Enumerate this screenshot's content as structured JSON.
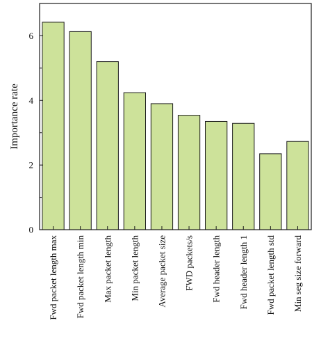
{
  "chart_data": {
    "type": "bar",
    "title": "",
    "xlabel": "",
    "ylabel": "Importance rate",
    "ylim": [
      0,
      7
    ],
    "yticks": [
      0,
      2,
      4,
      6
    ],
    "grid": false,
    "legend": "none",
    "bar_color": "#cde29a",
    "bar_edge_color": "#1a1a1a",
    "categories": [
      "Fwd packet length max",
      "Fwd packet length min",
      "Max packet length",
      "Min packet length",
      "Average packet size",
      "FWD packets/s",
      "Fwd header length",
      "Fwd header length 1",
      "Fwd packet length std",
      "Min seg size forward"
    ],
    "values": [
      6.42,
      6.13,
      5.2,
      4.24,
      3.9,
      3.54,
      3.35,
      3.29,
      2.35,
      2.73
    ]
  }
}
